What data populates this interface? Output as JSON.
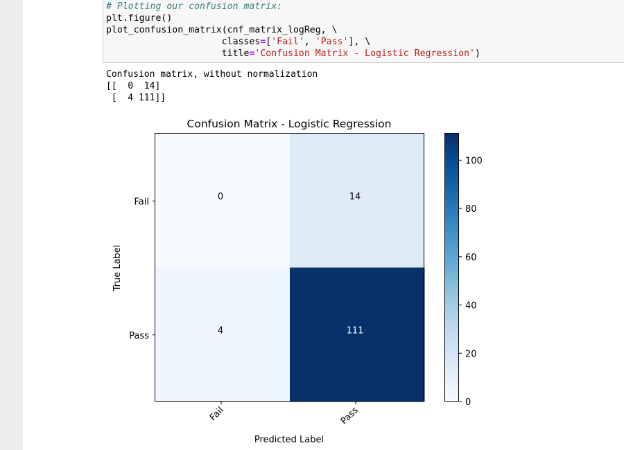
{
  "code": {
    "line1_comment": "# Plotting our confusion matrix:",
    "line2": "plt.figure()",
    "line3": "plot_confusion_matrix(cnf_matrix_logReg, \\",
    "line4_indent": "                     classes",
    "line4_eq": "=",
    "line4_a": "[",
    "line4_s1": "'Fail'",
    "line4_b": ", ",
    "line4_s2": "'Pass'",
    "line4_c": "], \\",
    "line5_indent": "                     title",
    "line5_eq": "=",
    "line5_s": "'Confusion Matrix - Logistic Regression'",
    "line5_end": ")"
  },
  "output": {
    "line1": "Confusion matrix, without normalization",
    "line2": "[[  0  14]",
    "line3": " [  4 111]]"
  },
  "chart_data": {
    "type": "heatmap",
    "title": "Confusion Matrix - Logistic Regression",
    "xlabel": "Predicted Label",
    "ylabel": "True Label",
    "x_categories": [
      "Fail",
      "Pass"
    ],
    "y_categories": [
      "Fail",
      "Pass"
    ],
    "values": [
      [
        0,
        14
      ],
      [
        4,
        111
      ]
    ],
    "colormap": "Blues",
    "colorbar": {
      "min": 0,
      "max": 111,
      "ticks": [
        0,
        20,
        40,
        60,
        80,
        100
      ]
    },
    "text_color_light": "#ffffff",
    "text_color_dark": "#000000"
  }
}
